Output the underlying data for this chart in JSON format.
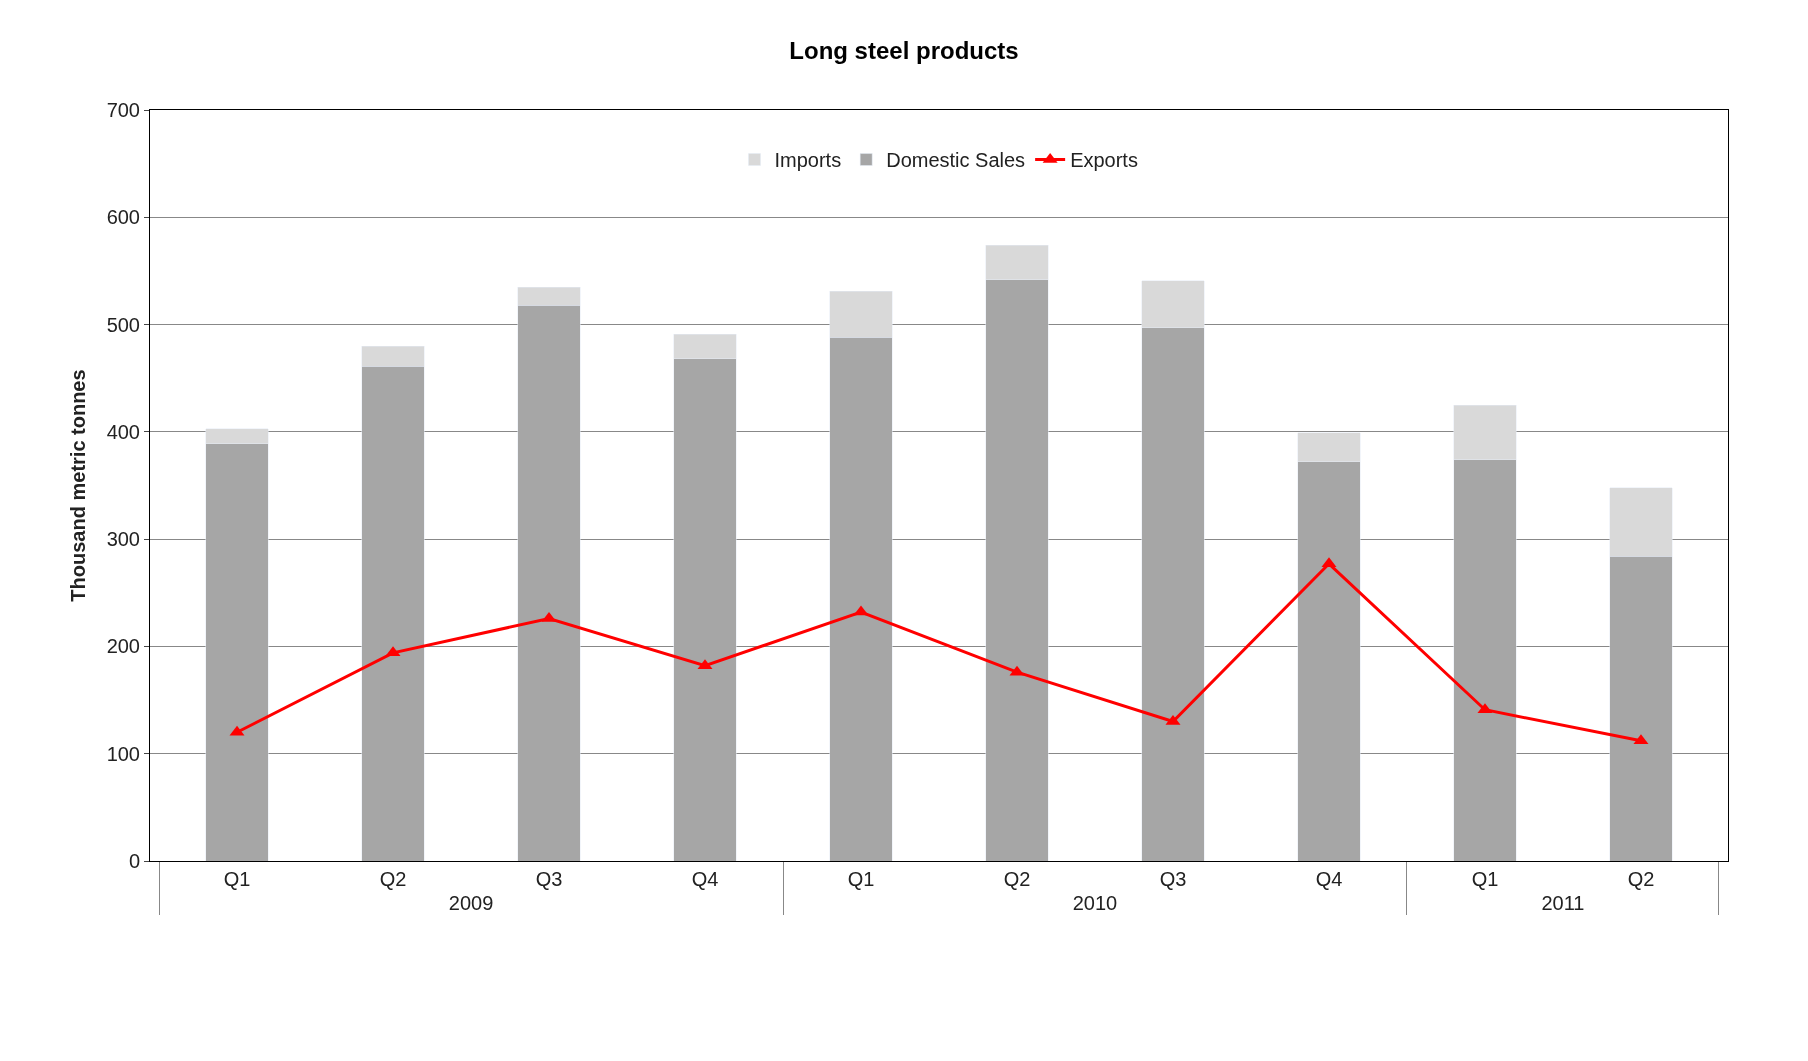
{
  "chart_data": {
    "type": "bar",
    "title": "Long steel products",
    "ylabel": "Thousand metric tonnes",
    "categories": [
      "Q1",
      "Q2",
      "Q3",
      "Q4",
      "Q1",
      "Q2",
      "Q3",
      "Q4",
      "Q1",
      "Q2"
    ],
    "annotations": [
      "2009",
      "2010",
      "2011"
    ],
    "stacked": true,
    "series": [
      {
        "name": "Domestic Sales",
        "color": "#a6a6a6",
        "values": [
          389,
          461,
          518,
          468,
          488,
          542,
          497,
          372,
          374,
          284
        ]
      },
      {
        "name": "Imports",
        "color": "#d9d9d9",
        "values": [
          14,
          19,
          17,
          23,
          43,
          32,
          44,
          27,
          51,
          64
        ]
      },
      {
        "name": "Exports",
        "type": "line",
        "color": "#ff0000",
        "marker": "triangle",
        "values": [
          120,
          194,
          226,
          182,
          232,
          176,
          130,
          277,
          141,
          112
        ]
      }
    ],
    "ylim": [
      0,
      700
    ],
    "yticks": [
      0,
      100,
      200,
      300,
      400,
      500,
      600,
      700
    ],
    "grid": "y",
    "legend": "top"
  }
}
